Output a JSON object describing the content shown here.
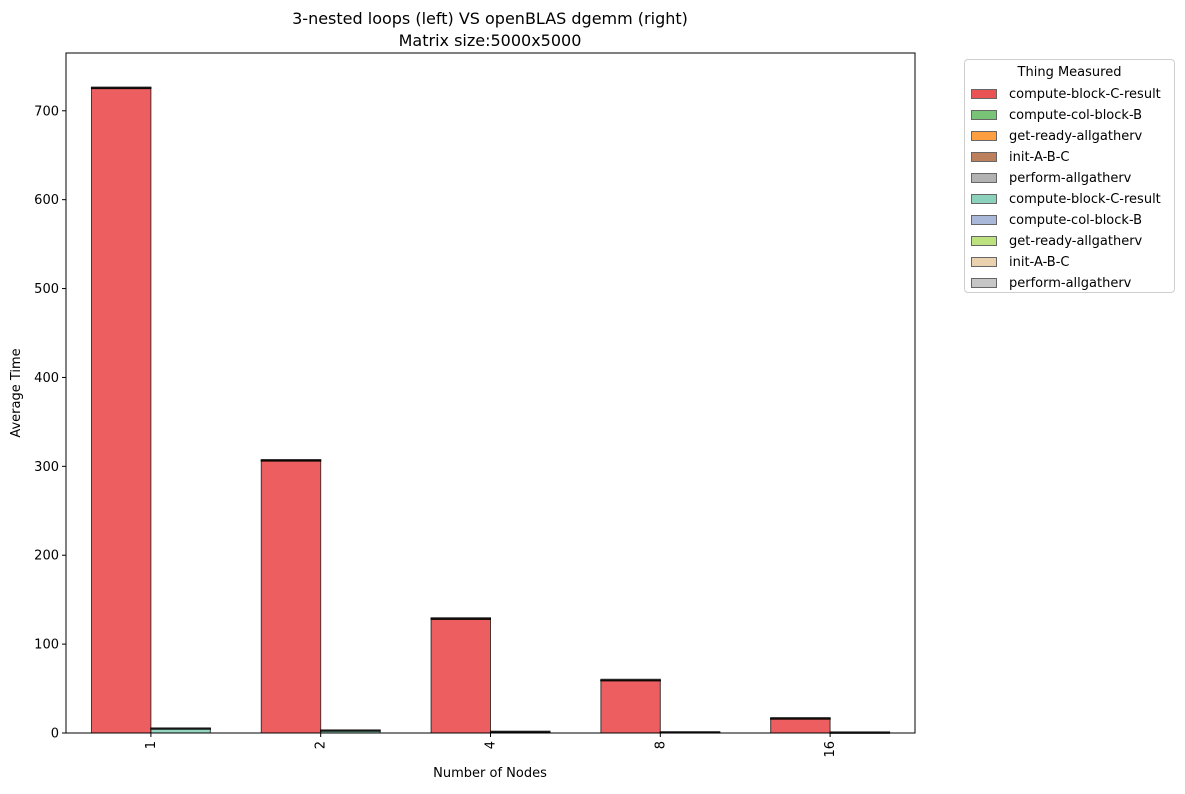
{
  "chart_data": {
    "type": "bar",
    "title": "3-nested loops (left) VS openBLAS dgemm (right)",
    "subtitle": "Matrix size:5000x5000",
    "xlabel": "Number of Nodes",
    "ylabel": "Average Time",
    "ylim": [
      0,
      765
    ],
    "yticks": [
      0,
      100,
      200,
      300,
      400,
      500,
      600,
      700
    ],
    "categories": [
      "1",
      "2",
      "4",
      "8",
      "16"
    ],
    "stacked": true,
    "grouped_stacks": [
      "3-nested loops",
      "openBLAS dgemm"
    ],
    "legend_title": "Thing Measured",
    "legend_position": "outside-top-right",
    "grid": false,
    "series": [
      {
        "name": "compute-block-C-result",
        "stack": 0,
        "color": "#e41a1c",
        "values": [
          725,
          306,
          128,
          59,
          16
        ]
      },
      {
        "name": "compute-col-block-B",
        "stack": 0,
        "color": "#4daf4a",
        "values": [
          0.5,
          0.4,
          0.3,
          0.2,
          0.1
        ]
      },
      {
        "name": "get-ready-allgatherv",
        "stack": 0,
        "color": "#ff7f00",
        "values": [
          0.3,
          0.2,
          0.2,
          0.1,
          0.1
        ]
      },
      {
        "name": "init-A-B-C",
        "stack": 0,
        "color": "#a65628",
        "values": [
          0.6,
          0.6,
          0.6,
          0.5,
          0.4
        ]
      },
      {
        "name": "perform-allgatherv",
        "stack": 0,
        "color": "#999999",
        "values": [
          0.2,
          0.5,
          0.6,
          0.7,
          0.8
        ]
      },
      {
        "name": "compute-block-C-result",
        "stack": 1,
        "color": "#66c2a5",
        "values": [
          4.5,
          2.4,
          1.0,
          0.5,
          0.3
        ]
      },
      {
        "name": "compute-col-block-B",
        "stack": 1,
        "color": "#8da0cb",
        "values": [
          0.3,
          0.2,
          0.1,
          0.1,
          0.05
        ]
      },
      {
        "name": "get-ready-allgatherv",
        "stack": 1,
        "color": "#a6d854",
        "values": [
          0.2,
          0.1,
          0.1,
          0.05,
          0.05
        ]
      },
      {
        "name": "init-A-B-C",
        "stack": 1,
        "color": "#e5c494",
        "values": [
          0.5,
          0.5,
          0.5,
          0.4,
          0.4
        ]
      },
      {
        "name": "perform-allgatherv",
        "stack": 1,
        "color": "#b3b3b3",
        "values": [
          0.2,
          0.3,
          0.4,
          0.5,
          0.5
        ]
      }
    ]
  }
}
